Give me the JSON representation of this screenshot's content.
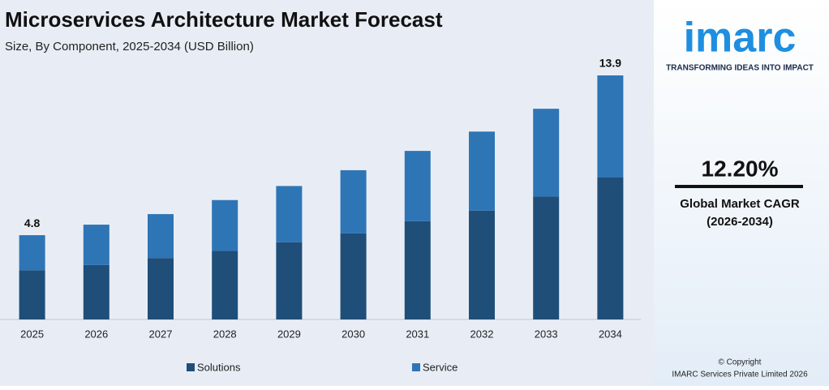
{
  "chart_data": {
    "type": "stacked_bar",
    "title": "Microservices Architecture Market Forecast",
    "subtitle": "Size, By Component, 2025-2034 (USD Billion)",
    "categories": [
      "2025",
      "2026",
      "2027",
      "2028",
      "2029",
      "2030",
      "2031",
      "2032",
      "2033",
      "2034"
    ],
    "series": [
      {
        "name": "Solutions",
        "color": "#1f4e79",
        "values": [
          2.8,
          3.1,
          3.5,
          3.9,
          4.4,
          4.9,
          5.6,
          6.2,
          7.0,
          8.1
        ]
      },
      {
        "name": "Service",
        "color": "#2e75b6",
        "values": [
          2.0,
          2.3,
          2.5,
          2.9,
          3.2,
          3.6,
          4.0,
          4.5,
          5.0,
          5.8
        ]
      }
    ],
    "annotations": [
      {
        "x": "2025",
        "value": 4.8
      },
      {
        "x": "2034",
        "value": 13.9
      }
    ],
    "ylim": [
      0,
      14.5
    ],
    "legend": "bottom"
  },
  "sidebar": {
    "logo": "imarc",
    "tagline": "TRANSFORMING IDEAS INTO IMPACT",
    "cagr": "12.20%",
    "cagr_label": "Global Market CAGR",
    "cagr_period": "(2026-2034)",
    "copyright": "© Copyright",
    "company": "IMARC Services Private Limited 2026"
  }
}
